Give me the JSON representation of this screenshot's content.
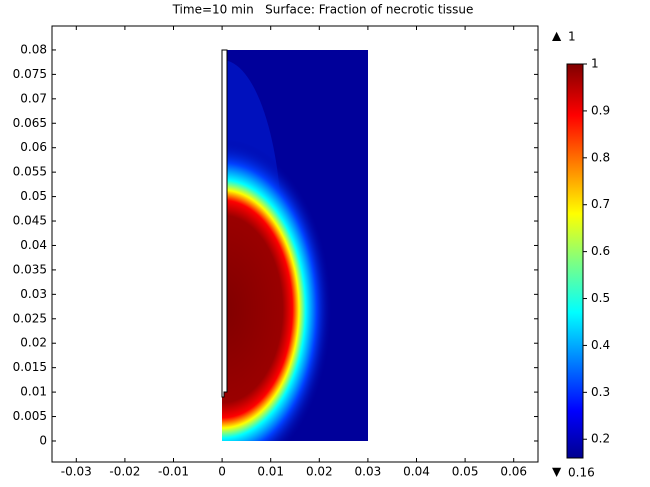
{
  "chart_data": {
    "type": "surface",
    "title": "Time=10 min   Surface: Fraction of necrotic tissue",
    "xlim": [
      -0.035,
      0.065
    ],
    "ylim": [
      -0.0043,
      0.0849
    ],
    "xticks": [
      -0.03,
      -0.02,
      -0.01,
      0,
      0.01,
      0.02,
      0.03,
      0.04,
      0.05,
      0.06
    ],
    "yticks": [
      0,
      0.005,
      0.01,
      0.015,
      0.02,
      0.025,
      0.03,
      0.035,
      0.04,
      0.045,
      0.05,
      0.055,
      0.06,
      0.065,
      0.07,
      0.075,
      0.08
    ],
    "colorbar": {
      "clim": [
        0.16,
        1
      ],
      "ticks": [
        0.2,
        0.3,
        0.4,
        0.5,
        0.6,
        0.7,
        0.8,
        0.9,
        1
      ],
      "max": 1,
      "min": 0.16
    }
  }
}
